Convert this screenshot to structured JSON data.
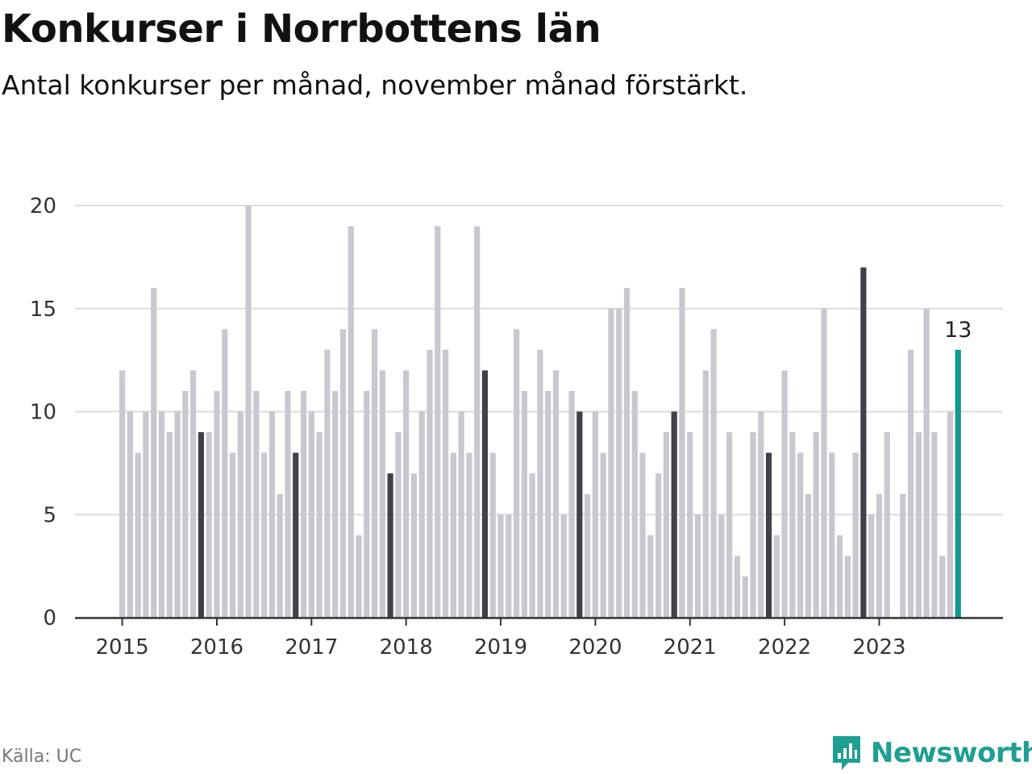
{
  "header": {
    "title": "Konkurser i Norrbottens län",
    "subtitle": "Antal konkurser per månad, november månad förstärkt."
  },
  "footer": {
    "source": "Källa: UC",
    "brand": "Newsworthy",
    "brand_icon": "bar-chart-logo-icon"
  },
  "colors": {
    "bar": "#c8c8d0",
    "highlight": "#41414a",
    "latest": "#13998d",
    "grid": "#dddddd",
    "axis": "#333333",
    "brand": "#1f9e93"
  },
  "chart_data": {
    "type": "bar",
    "ylim": [
      0,
      20
    ],
    "yticks": [
      "0",
      "5",
      "10",
      "15",
      "20"
    ],
    "xticks": [
      "2015",
      "2016",
      "2017",
      "2018",
      "2019",
      "2020",
      "2021",
      "2022",
      "2023"
    ],
    "start_year": 2015,
    "highlight_month": "november",
    "grid": true,
    "values": [
      12,
      10,
      8,
      10,
      16,
      10,
      9,
      10,
      11,
      12,
      9,
      9,
      11,
      14,
      8,
      10,
      20,
      11,
      8,
      10,
      6,
      11,
      8,
      11,
      10,
      9,
      13,
      11,
      14,
      19,
      4,
      11,
      14,
      12,
      7,
      9,
      12,
      7,
      10,
      13,
      19,
      13,
      8,
      10,
      8,
      19,
      12,
      8,
      5,
      5,
      14,
      11,
      7,
      13,
      11,
      12,
      5,
      11,
      10,
      6,
      10,
      8,
      15,
      15,
      16,
      11,
      8,
      4,
      7,
      9,
      10,
      16,
      9,
      5,
      12,
      14,
      5,
      9,
      3,
      2,
      9,
      10,
      8,
      4,
      12,
      9,
      8,
      6,
      9,
      15,
      8,
      4,
      3,
      8,
      17,
      5,
      6,
      9,
      0,
      6,
      13,
      9,
      15,
      9,
      3,
      10,
      13
    ],
    "latest_label": "13"
  }
}
